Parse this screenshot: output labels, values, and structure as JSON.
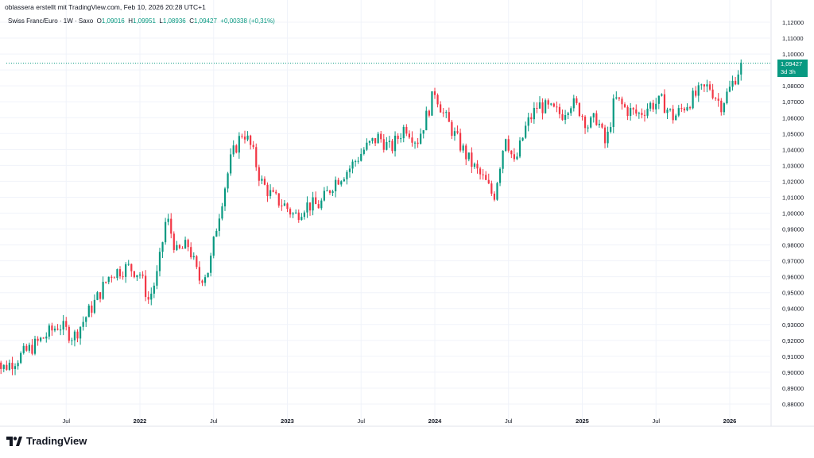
{
  "header": {
    "author_line": "oblassera erstellt mit TradingView.com, Feb 10, 2026 20:28 UTC+1"
  },
  "legend": {
    "symbol": "Swiss Franc/Euro · 1W · Saxo",
    "o_label": "O",
    "o": "1,09016",
    "h_label": "H",
    "h": "1,09951",
    "l_label": "L",
    "l": "1,08936",
    "c_label": "C",
    "c": "1,09427",
    "change": "+0,00338 (+0,31%)"
  },
  "price_tag": {
    "price": "1,09427",
    "countdown": "3d 3h"
  },
  "brand": {
    "name": "TradingView"
  },
  "colors": {
    "up": "#089981",
    "down": "#f23645",
    "grid": "#f0f3fa",
    "text": "#131722"
  },
  "chart_data": {
    "type": "candlestick",
    "timeframe": "1W",
    "ylim": [
      0.875,
      1.125
    ],
    "y_ticks": [
      "1,12000",
      "1,11000",
      "1,10000",
      "1,09000",
      "1,08000",
      "1,07000",
      "1,06000",
      "1,05000",
      "1,04000",
      "1,03000",
      "1,02000",
      "1,01000",
      "1,00000",
      "0,99000",
      "0,98000",
      "0,97000",
      "0,96000",
      "0,95000",
      "0,94000",
      "0,93000",
      "0,92000",
      "0,91000",
      "0,90000",
      "0,89000",
      "0,88000"
    ],
    "x_ticks": [
      {
        "label": "Jul",
        "t": 0.5
      },
      {
        "label": "2022",
        "t": 1.0,
        "bold": true
      },
      {
        "label": "Jul",
        "t": 1.5
      },
      {
        "label": "2023",
        "t": 2.0,
        "bold": true
      },
      {
        "label": "Jul",
        "t": 2.5
      },
      {
        "label": "2024",
        "t": 3.0,
        "bold": true
      },
      {
        "label": "Jul",
        "t": 3.5
      },
      {
        "label": "2025",
        "t": 4.0,
        "bold": true
      },
      {
        "label": "Jul",
        "t": 4.5
      },
      {
        "label": "2026",
        "t": 5.0,
        "bold": true
      }
    ],
    "last_price": 1.09427,
    "anchors": [
      [
        0.0,
        0.925
      ],
      [
        0.06,
        0.902
      ],
      [
        0.16,
        0.908
      ],
      [
        0.3,
        0.918
      ],
      [
        0.45,
        0.93
      ],
      [
        0.55,
        0.922
      ],
      [
        0.7,
        0.945
      ],
      [
        0.8,
        0.962
      ],
      [
        0.92,
        0.966
      ],
      [
        1.0,
        0.962
      ],
      [
        1.06,
        0.945
      ],
      [
        1.12,
        0.962
      ],
      [
        1.18,
        0.998
      ],
      [
        1.25,
        0.975
      ],
      [
        1.33,
        0.98
      ],
      [
        1.4,
        0.958
      ],
      [
        1.47,
        0.965
      ],
      [
        1.52,
        0.992
      ],
      [
        1.56,
        1.01
      ],
      [
        1.62,
        1.035
      ],
      [
        1.7,
        1.052
      ],
      [
        1.76,
        1.04
      ],
      [
        1.82,
        1.02
      ],
      [
        1.9,
        1.01
      ],
      [
        1.98,
        1.005
      ],
      [
        2.05,
        0.998
      ],
      [
        2.12,
        1.005
      ],
      [
        2.22,
        1.005
      ],
      [
        2.32,
        1.02
      ],
      [
        2.42,
        1.028
      ],
      [
        2.52,
        1.04
      ],
      [
        2.62,
        1.048
      ],
      [
        2.7,
        1.04
      ],
      [
        2.8,
        1.055
      ],
      [
        2.88,
        1.045
      ],
      [
        2.94,
        1.06
      ],
      [
        3.0,
        1.077
      ],
      [
        3.06,
        1.062
      ],
      [
        3.14,
        1.048
      ],
      [
        3.22,
        1.035
      ],
      [
        3.28,
        1.027
      ],
      [
        3.34,
        1.02
      ],
      [
        3.4,
        1.01
      ],
      [
        3.48,
        1.05
      ],
      [
        3.54,
        1.03
      ],
      [
        3.62,
        1.055
      ],
      [
        3.7,
        1.068
      ],
      [
        3.78,
        1.065
      ],
      [
        3.86,
        1.062
      ],
      [
        3.92,
        1.07
      ],
      [
        3.98,
        1.065
      ],
      [
        4.04,
        1.055
      ],
      [
        4.1,
        1.06
      ],
      [
        4.16,
        1.042
      ],
      [
        4.22,
        1.072
      ],
      [
        4.3,
        1.065
      ],
      [
        4.38,
        1.062
      ],
      [
        4.46,
        1.068
      ],
      [
        4.54,
        1.07
      ],
      [
        4.62,
        1.06
      ],
      [
        4.7,
        1.068
      ],
      [
        4.78,
        1.075
      ],
      [
        4.86,
        1.08
      ],
      [
        4.94,
        1.068
      ],
      [
        5.0,
        1.078
      ],
      [
        5.06,
        1.09
      ],
      [
        5.09,
        1.094
      ]
    ]
  }
}
